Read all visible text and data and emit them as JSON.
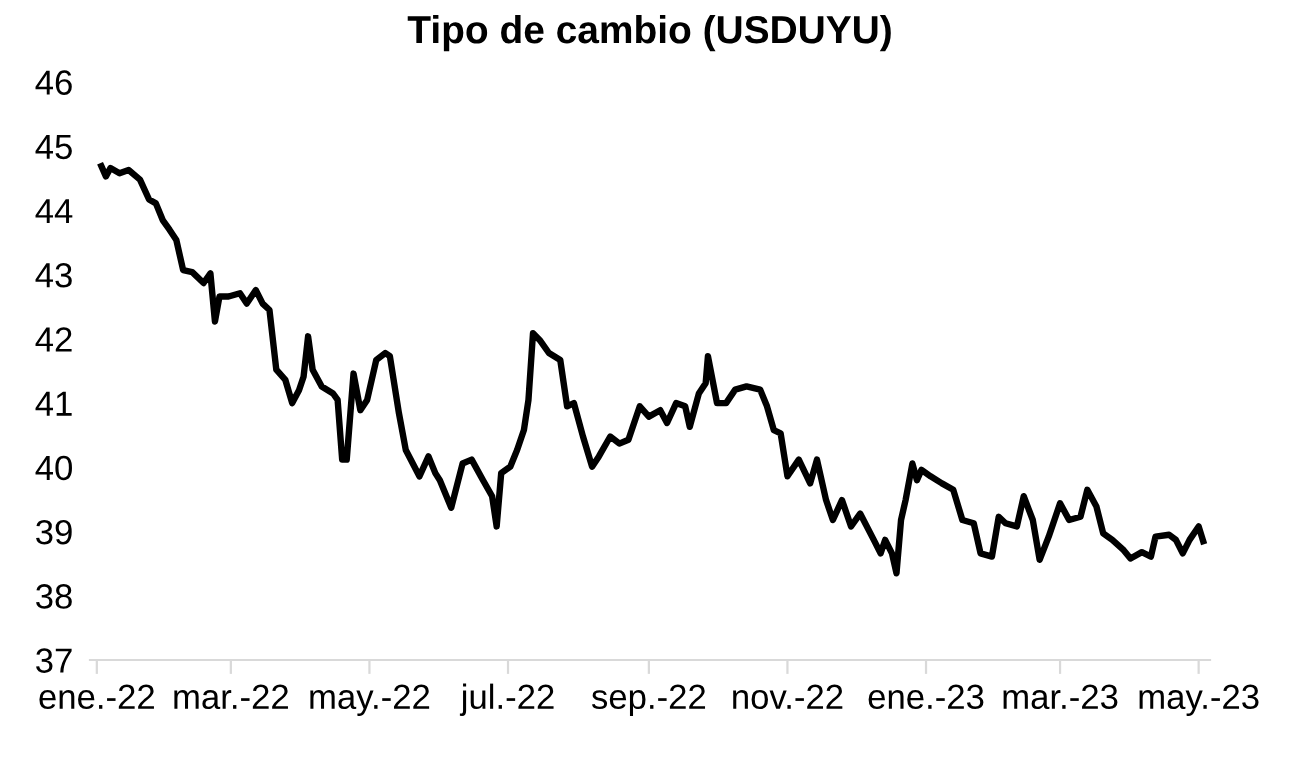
{
  "chart_data": {
    "type": "line",
    "title": "Tipo de cambio (USDUYU)",
    "x": [
      "2022-01-03",
      "2022-01-05",
      "2022-01-07",
      "2022-01-11",
      "2022-01-15",
      "2022-01-20",
      "2022-01-24",
      "2022-01-27",
      "2022-01-30",
      "2022-02-02",
      "2022-02-05",
      "2022-02-08",
      "2022-02-12",
      "2022-02-17",
      "2022-02-20",
      "2022-02-22",
      "2022-02-24",
      "2022-02-28",
      "2022-03-05",
      "2022-03-08",
      "2022-03-12",
      "2022-03-15",
      "2022-03-18",
      "2022-03-21",
      "2022-03-25",
      "2022-03-28",
      "2022-03-31",
      "2022-04-02",
      "2022-04-04",
      "2022-04-06",
      "2022-04-10",
      "2022-04-15",
      "2022-04-17",
      "2022-04-19",
      "2022-04-21",
      "2022-04-24",
      "2022-04-27",
      "2022-04-30",
      "2022-05-04",
      "2022-05-08",
      "2022-05-10",
      "2022-05-14",
      "2022-05-17",
      "2022-05-23",
      "2022-05-27",
      "2022-05-30",
      "2022-06-01",
      "2022-06-06",
      "2022-06-11",
      "2022-06-15",
      "2022-06-20",
      "2022-06-24",
      "2022-06-26",
      "2022-06-28",
      "2022-07-02",
      "2022-07-05",
      "2022-07-08",
      "2022-07-10",
      "2022-07-12",
      "2022-07-15",
      "2022-07-19",
      "2022-07-24",
      "2022-07-27",
      "2022-07-30",
      "2022-08-03",
      "2022-08-07",
      "2022-08-10",
      "2022-08-15",
      "2022-08-19",
      "2022-08-23",
      "2022-08-28",
      "2022-09-01",
      "2022-09-06",
      "2022-09-09",
      "2022-09-13",
      "2022-09-17",
      "2022-09-19",
      "2022-09-23",
      "2022-09-26",
      "2022-09-27",
      "2022-10-01",
      "2022-10-05",
      "2022-10-09",
      "2022-10-14",
      "2022-10-20",
      "2022-10-23",
      "2022-10-26",
      "2022-10-29",
      "2022-11-01",
      "2022-11-06",
      "2022-11-11",
      "2022-11-14",
      "2022-11-18",
      "2022-11-21",
      "2022-11-25",
      "2022-11-29",
      "2022-12-03",
      "2022-12-09",
      "2022-12-12",
      "2022-12-14",
      "2022-12-17",
      "2022-12-19",
      "2022-12-21",
      "2022-12-23",
      "2022-12-26",
      "2022-12-28",
      "2022-12-30",
      "2023-01-03",
      "2023-01-08",
      "2023-01-13",
      "2023-01-17",
      "2023-01-22",
      "2023-01-25",
      "2023-01-30",
      "2023-02-02",
      "2023-02-05",
      "2023-02-10",
      "2023-02-13",
      "2023-02-17",
      "2023-02-20",
      "2023-02-24",
      "2023-03-01",
      "2023-03-05",
      "2023-03-10",
      "2023-03-13",
      "2023-03-17",
      "2023-03-20",
      "2023-03-24",
      "2023-03-29",
      "2023-04-01",
      "2023-04-06",
      "2023-04-10",
      "2023-04-12",
      "2023-04-18",
      "2023-04-21",
      "2023-04-24",
      "2023-04-27",
      "2023-05-01",
      "2023-05-03"
    ],
    "series": [
      {
        "color": "#000000",
        "values": [
          44.69,
          44.53,
          44.66,
          44.58,
          44.63,
          44.48,
          44.17,
          44.11,
          43.85,
          43.7,
          43.54,
          43.07,
          43.04,
          42.87,
          43.02,
          42.27,
          42.66,
          42.66,
          42.71,
          42.55,
          42.76,
          42.55,
          42.45,
          41.52,
          41.36,
          41.0,
          41.2,
          41.41,
          42.04,
          41.52,
          41.26,
          41.15,
          41.05,
          40.12,
          40.12,
          41.46,
          40.89,
          41.05,
          41.67,
          41.78,
          41.73,
          40.84,
          40.27,
          39.86,
          40.17,
          39.91,
          39.8,
          39.37,
          40.06,
          40.12,
          39.8,
          39.55,
          39.08,
          39.91,
          40.01,
          40.27,
          40.58,
          41.05,
          42.09,
          41.98,
          41.78,
          41.67,
          40.95,
          41.0,
          40.48,
          40.01,
          40.17,
          40.48,
          40.37,
          40.43,
          40.95,
          40.79,
          40.89,
          40.69,
          41.0,
          40.95,
          40.63,
          41.15,
          41.31,
          41.73,
          41.0,
          41.0,
          41.21,
          41.26,
          41.21,
          40.95,
          40.58,
          40.53,
          39.86,
          40.12,
          39.75,
          40.12,
          39.49,
          39.18,
          39.49,
          39.08,
          39.28,
          38.87,
          38.66,
          38.87,
          38.66,
          38.35,
          39.18,
          39.49,
          40.06,
          39.8,
          39.96,
          39.86,
          39.75,
          39.65,
          39.18,
          39.13,
          38.66,
          38.61,
          39.23,
          39.13,
          39.08,
          39.55,
          39.18,
          38.56,
          38.92,
          39.44,
          39.18,
          39.23,
          39.65,
          39.39,
          38.97,
          38.87,
          38.71,
          38.58,
          38.68,
          38.61,
          38.92,
          38.95,
          38.87,
          38.66,
          38.87,
          39.08,
          38.85
        ]
      }
    ],
    "xlim": [
      "2021-12-29",
      "2023-05-06"
    ],
    "xticks": [
      {
        "value": "2022-01-01",
        "label": "ene.-22"
      },
      {
        "value": "2022-03-01",
        "label": "mar.-22"
      },
      {
        "value": "2022-05-01",
        "label": "may.-22"
      },
      {
        "value": "2022-07-01",
        "label": "jul.-22"
      },
      {
        "value": "2022-09-01",
        "label": "sep.-22"
      },
      {
        "value": "2022-11-01",
        "label": "nov.-22"
      },
      {
        "value": "2023-01-01",
        "label": "ene.-23"
      },
      {
        "value": "2023-03-01",
        "label": "mar.-23"
      },
      {
        "value": "2023-05-01",
        "label": "may.-23"
      }
    ],
    "ylim": [
      37,
      46
    ],
    "yticks": [
      37,
      38,
      39,
      40,
      41,
      42,
      43,
      44,
      45,
      46
    ],
    "grid": false,
    "marker": "none",
    "line_style": "solid"
  }
}
